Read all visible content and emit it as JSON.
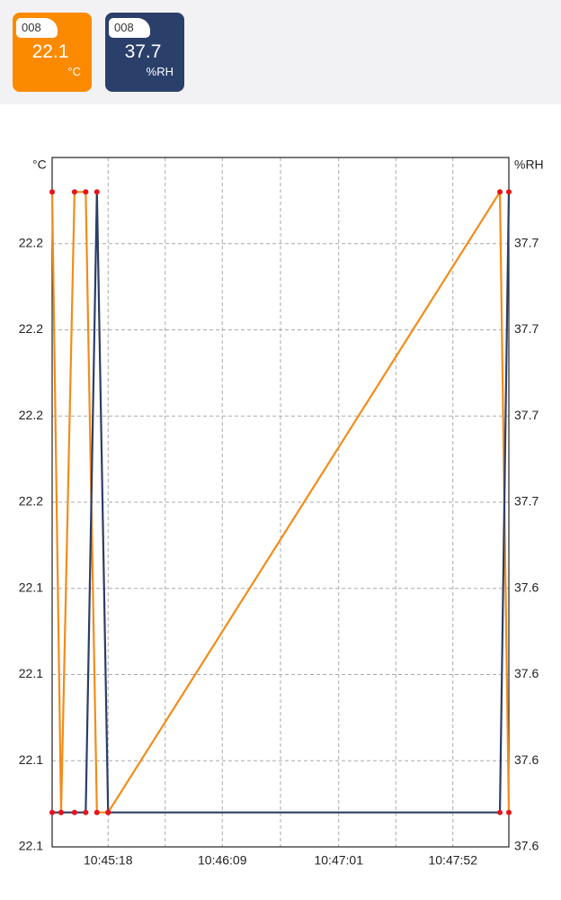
{
  "cards": [
    {
      "badge": "008",
      "value": "22.1",
      "unit": "°C",
      "color": "#fb8a00"
    },
    {
      "badge": "008",
      "value": "37.7",
      "unit": "%RH",
      "color": "#2b3f6b"
    }
  ],
  "chart_data": {
    "type": "line",
    "y_label": "°C",
    "y2_label": "%RH",
    "x": [
      "10:44:53",
      "10:44:57",
      "10:45:03",
      "10:45:08",
      "10:45:13",
      "10:45:18",
      "10:48:13",
      "10:48:17"
    ],
    "xlim": [
      "10:44:53",
      "10:48:17"
    ],
    "xticks": [
      "10:45:18",
      "10:46:09",
      "10:47:01",
      "10:47:52"
    ],
    "ylim": [
      22.1,
      22.2
    ],
    "yticks": [
      22.1,
      {
        "value": 22.1125,
        "label": "22.1"
      },
      {
        "value": 22.125,
        "label": "22.1"
      },
      {
        "value": 22.1375,
        "label": "22.1"
      },
      {
        "value": 22.15,
        "label": "22.2"
      },
      {
        "value": 22.1625,
        "label": "22.2"
      },
      {
        "value": 22.175,
        "label": "22.2"
      },
      {
        "value": 22.1875,
        "label": "22.2"
      }
    ],
    "y2lim": [
      37.6,
      37.7
    ],
    "y2ticks": [
      37.6,
      {
        "value": 37.6125,
        "label": "37.6"
      },
      {
        "value": 37.625,
        "label": "37.6"
      },
      {
        "value": 37.6375,
        "label": "37.6"
      },
      {
        "value": 37.65,
        "label": "37.7"
      },
      {
        "value": 37.6625,
        "label": "37.7"
      },
      {
        "value": 37.675,
        "label": "37.7"
      },
      {
        "value": 37.6875,
        "label": "37.7"
      }
    ],
    "grid": true,
    "marker_color": "#e8141b",
    "series": [
      {
        "color": "#f28c1a",
        "values": [
          22.195,
          22.105,
          22.195,
          22.195,
          22.105,
          22.105,
          22.195,
          22.105
        ]
      },
      {
        "color": "#2c3e66",
        "axis": "y2",
        "values": [
          37.605,
          37.605,
          37.605,
          37.605,
          37.695,
          37.605,
          37.605,
          37.695
        ]
      }
    ]
  }
}
